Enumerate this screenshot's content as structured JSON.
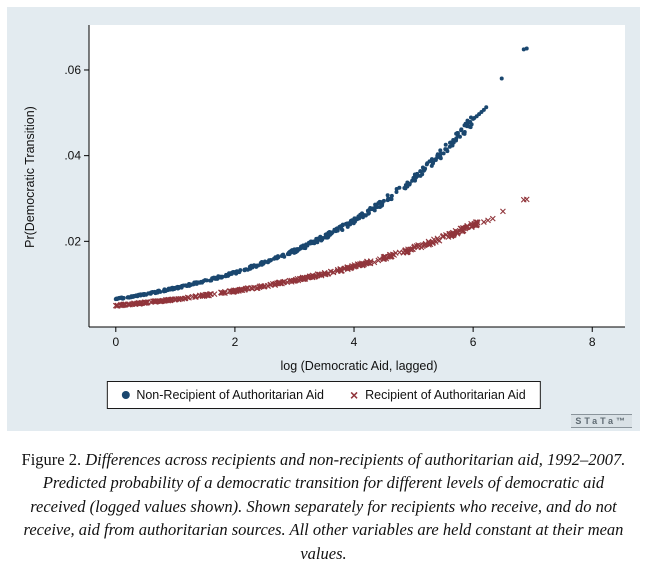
{
  "chart_data": {
    "type": "scatter",
    "title": "",
    "xlabel": "log (Democratic Aid, lagged)",
    "ylabel": "Pr(Democratic Transition)",
    "xlim": [
      -0.45,
      8.55
    ],
    "ylim": [
      0,
      0.0705
    ],
    "xticks": [
      {
        "v": 0,
        "label": "0"
      },
      {
        "v": 2,
        "label": "2"
      },
      {
        "v": 4,
        "label": "4"
      },
      {
        "v": 6,
        "label": "6"
      },
      {
        "v": 8,
        "label": "8"
      }
    ],
    "yticks": [
      {
        "v": 0.02,
        "label": ".02"
      },
      {
        "v": 0.04,
        "label": ".04"
      },
      {
        "v": 0.06,
        "label": ".06"
      }
    ],
    "grid": false,
    "legend_position": "bottom",
    "background": "#e3ebf0",
    "plot_background": "#ffffff",
    "axis_color": "#000000",
    "series": [
      {
        "name": "Non-Recipient of Authoritarian Aid",
        "marker": "circle",
        "color": "#1a476f",
        "curve": {
          "base": 0.0065,
          "growth": 0.335,
          "x_start": 0,
          "x_end": 6.0,
          "n_points": 430,
          "y_jitter_pct": 0.026
        },
        "anchor_points": [
          [
            0,
            0.0065
          ],
          [
            1,
            0.0091
          ],
          [
            2,
            0.0127
          ],
          [
            3,
            0.0178
          ],
          [
            4,
            0.0249
          ],
          [
            5,
            0.0348
          ],
          [
            6,
            0.0486
          ],
          [
            6.9,
            0.065
          ]
        ],
        "tail_points": [
          [
            6.02,
            0.0488
          ],
          [
            6.06,
            0.0492
          ],
          [
            6.1,
            0.0497
          ],
          [
            6.14,
            0.0502
          ],
          [
            6.18,
            0.0507
          ],
          [
            6.22,
            0.0513
          ],
          [
            6.48,
            0.058
          ],
          [
            6.85,
            0.0648
          ]
        ]
      },
      {
        "name": "Recipient of Authoritarian Aid",
        "marker": "x",
        "color": "#90353b",
        "curve": {
          "base": 0.005,
          "growth": 0.26,
          "x_start": 0,
          "x_end": 6.1,
          "n_points": 400,
          "y_jitter_pct": 0.024
        },
        "anchor_points": [
          [
            0,
            0.005
          ],
          [
            2,
            0.0084
          ],
          [
            4,
            0.0141
          ],
          [
            6,
            0.0238
          ],
          [
            6.9,
            0.0298
          ]
        ],
        "tail_points": [
          [
            6.18,
            0.0245
          ],
          [
            6.25,
            0.0249
          ],
          [
            6.33,
            0.0253
          ],
          [
            6.5,
            0.027
          ],
          [
            6.85,
            0.0297
          ]
        ]
      }
    ]
  },
  "branding": {
    "logo_text": "STaTa™"
  },
  "caption": {
    "prefix": "Figure 2.",
    "text": " Differences across recipients and non-recipients of authoritarian aid, 1992–2007. Predicted probability of a democratic transition for different levels of democratic aid received (logged values shown). Shown separately for recipients who receive, and do not receive, aid from authoritarian sources. All other variables are held constant at their mean values."
  }
}
